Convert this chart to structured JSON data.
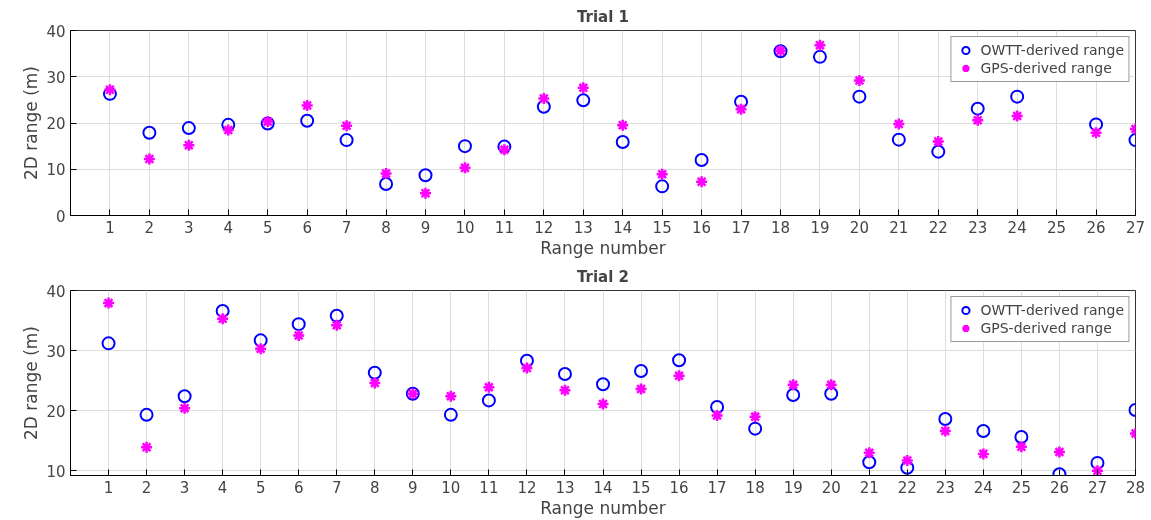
{
  "chart_data": [
    {
      "type": "scatter",
      "title": "Trial 1",
      "xlabel": "Range number",
      "ylabel": "2D range (m)",
      "x": [
        1,
        2,
        3,
        4,
        5,
        6,
        7,
        8,
        9,
        10,
        11,
        12,
        13,
        14,
        15,
        16,
        17,
        18,
        19,
        20,
        21,
        22,
        23,
        24,
        25,
        26,
        27
      ],
      "xlim": [
        0,
        27
      ],
      "xticks": [
        1,
        2,
        3,
        4,
        5,
        6,
        7,
        8,
        9,
        10,
        11,
        12,
        13,
        14,
        15,
        16,
        17,
        18,
        19,
        20,
        21,
        22,
        23,
        24,
        25,
        26,
        27
      ],
      "ylim": [
        0,
        40
      ],
      "yticks": [
        0,
        10,
        20,
        30,
        40
      ],
      "grid": true,
      "legend": "top right",
      "series": [
        {
          "name": "OWTT-derived range",
          "color": "#0000ff",
          "marker": "circle",
          "values": [
            26.3,
            17.9,
            18.9,
            19.6,
            19.9,
            20.5,
            16.3,
            6.8,
            8.7,
            15.0,
            14.9,
            23.5,
            24.9,
            15.9,
            6.3,
            12.0,
            24.6,
            35.5,
            34.3,
            25.7,
            16.4,
            13.8,
            23.1,
            25.7,
            null,
            19.7,
            16.3
          ]
        },
        {
          "name": "GPS-derived range",
          "color": "#ff00ff",
          "marker": "cross",
          "values": [
            27.2,
            12.2,
            15.2,
            18.5,
            20.3,
            23.8,
            19.4,
            9.1,
            4.8,
            10.3,
            14.2,
            25.3,
            27.6,
            19.5,
            8.9,
            7.3,
            23.0,
            35.6,
            36.8,
            29.2,
            19.8,
            16.0,
            20.6,
            21.5,
            null,
            17.9,
            18.7
          ]
        }
      ]
    },
    {
      "type": "scatter",
      "title": "Trial 2",
      "xlabel": "Range number",
      "ylabel": "2D range (m)",
      "x": [
        1,
        2,
        3,
        4,
        5,
        6,
        7,
        8,
        9,
        10,
        11,
        12,
        13,
        14,
        15,
        16,
        17,
        18,
        19,
        20,
        21,
        22,
        23,
        24,
        25,
        26,
        27,
        28
      ],
      "xlim": [
        0,
        28
      ],
      "xticks": [
        1,
        2,
        3,
        4,
        5,
        6,
        7,
        8,
        9,
        10,
        11,
        12,
        13,
        14,
        15,
        16,
        17,
        18,
        19,
        20,
        21,
        22,
        23,
        24,
        25,
        26,
        27,
        28
      ],
      "ylim": [
        9.2,
        40
      ],
      "yticks": [
        10,
        20,
        30,
        40
      ],
      "grid": true,
      "legend": "top right",
      "series": [
        {
          "name": "OWTT-derived range",
          "color": "#0000ff",
          "marker": "circle",
          "values": [
            31.2,
            19.3,
            22.4,
            36.6,
            31.7,
            34.4,
            35.8,
            26.3,
            22.8,
            19.3,
            21.7,
            28.3,
            26.1,
            24.4,
            26.6,
            28.4,
            20.6,
            17.0,
            22.6,
            22.8,
            11.4,
            10.5,
            18.6,
            16.6,
            15.6,
            9.4,
            11.3,
            20.1
          ]
        },
        {
          "name": "GPS-derived range",
          "color": "#ff00ff",
          "marker": "cross",
          "values": [
            37.9,
            13.9,
            20.4,
            35.3,
            30.3,
            32.5,
            34.2,
            24.6,
            22.8,
            22.4,
            23.9,
            27.1,
            23.4,
            21.1,
            23.6,
            25.8,
            19.2,
            19.0,
            24.3,
            24.3,
            13.0,
            11.7,
            16.6,
            12.8,
            14.0,
            13.1,
            10.0,
            16.2
          ]
        }
      ]
    }
  ]
}
